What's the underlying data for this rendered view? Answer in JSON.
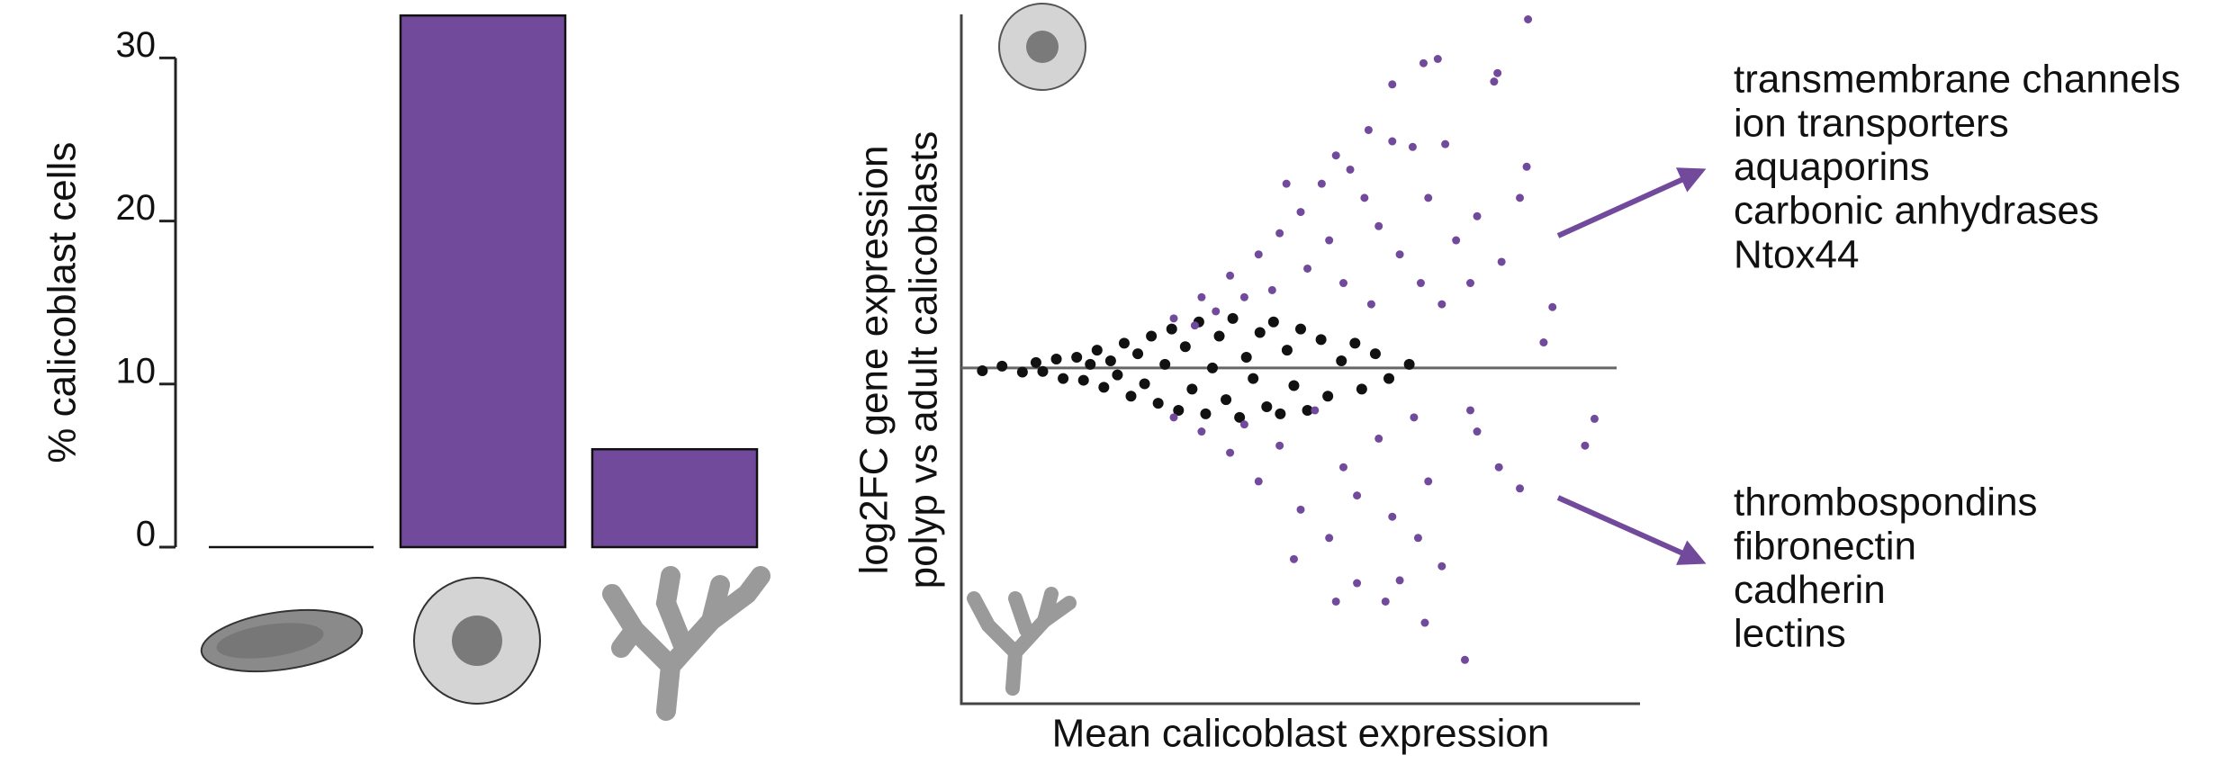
{
  "chart_data": [
    {
      "type": "bar",
      "ylabel": "% calicoblast cells",
      "categories": [
        null,
        null,
        null
      ],
      "values": [
        0,
        32.6,
        6.0
      ],
      "color": "#724a9c",
      "ylim": [
        0,
        33
      ],
      "yticks": [
        0,
        10,
        20,
        30
      ]
    },
    {
      "type": "scatter",
      "xlabel": "Mean calicoblast expression",
      "ylabel": [
        "log2FC gene expression",
        "polyp vs adult calicoblasts"
      ],
      "xlim": [
        0,
        10
      ],
      "ylim": [
        -9.5,
        10
      ],
      "hline": 0,
      "series": [
        {
          "color": "#111111",
          "x": [
            0.31,
            0.6,
            0.9,
            1.1,
            1.2,
            1.4,
            1.5,
            1.7,
            1.8,
            1.9,
            2.0,
            2.1,
            2.2,
            2.3,
            2.4,
            2.5,
            2.6,
            2.7,
            2.8,
            2.9,
            3.0,
            3.1,
            3.2,
            3.3,
            3.4,
            3.5,
            3.6,
            3.7,
            3.8,
            3.9,
            4.0,
            4.1,
            4.2,
            4.3,
            4.4,
            4.5,
            4.6,
            4.7,
            4.8,
            4.9,
            5.0,
            5.1,
            5.3,
            5.4,
            5.6,
            5.8,
            5.9,
            6.1,
            6.3,
            6.6
          ],
          "values": [
            -0.08,
            0.05,
            -0.12,
            0.15,
            -0.1,
            0.25,
            -0.3,
            0.3,
            -0.35,
            0.1,
            0.5,
            -0.55,
            0.2,
            -0.2,
            0.7,
            -0.8,
            0.4,
            -0.45,
            0.9,
            -1.0,
            0.1,
            1.1,
            -1.2,
            0.6,
            -0.6,
            1.3,
            -1.3,
            0.0,
            0.9,
            -0.9,
            1.4,
            -1.4,
            0.3,
            -0.3,
            1.0,
            -1.1,
            1.3,
            -1.3,
            0.5,
            -0.5,
            1.1,
            -1.2,
            0.8,
            -0.8,
            0.2,
            0.7,
            -0.6,
            0.4,
            -0.3,
            0.1
          ]
        },
        {
          "color": "#724a9c",
          "x": [
            8.35,
            7.02,
            6.81,
            7.9,
            7.85,
            6.35,
            8.33,
            8.23,
            6.65,
            7.13,
            6.0,
            7.6,
            7.96,
            8.71,
            8.58,
            9.33,
            9.19,
            8.23,
            7.42,
            6.83,
            6.25,
            6.46,
            5.83,
            7.08,
            6.73,
            5.42,
            5.0,
            4.38,
            3.96,
            3.54,
            3.13,
            4.17,
            4.69,
            5.63,
            6.15,
            6.67,
            7.5,
            5.21,
            5.83,
            6.35,
            4.9,
            5.52,
            7.6,
            7.92,
            6.88,
            3.13,
            3.54,
            3.96,
            4.38,
            4.17,
            4.69,
            5.0,
            5.31,
            5.52,
            5.73,
            5.94,
            6.15,
            6.46,
            6.77,
            7.08,
            4.58,
            5.1,
            5.63,
            6.04,
            5.42,
            7.29,
            7.5,
            6.35,
            6.88,
            4.79,
            3.44,
            3.75
          ],
          "values": [
            9.86,
            8.74,
            8.62,
            8.34,
            8.1,
            8.02,
            5.69,
            4.81,
            6.25,
            6.33,
            6.73,
            4.29,
            3.0,
            1.72,
            0.72,
            -1.44,
            -2.2,
            -3.41,
            -8.26,
            -7.21,
            -6.61,
            -6.01,
            -6.09,
            -5.61,
            -4.81,
            -4.81,
            -4.01,
            -3.21,
            -2.4,
            -1.8,
            -1.4,
            -1.6,
            -2.2,
            -2.81,
            -2.0,
            -1.4,
            -1.2,
            -1.2,
            -3.61,
            -4.21,
            -5.41,
            -6.61,
            -1.8,
            -2.81,
            -3.21,
            1.4,
            2.0,
            2.61,
            3.21,
            2.0,
            3.81,
            4.41,
            5.21,
            6.01,
            5.61,
            4.81,
            4.01,
            3.21,
            2.4,
            1.8,
            2.2,
            2.81,
            2.4,
            1.8,
            3.61,
            3.61,
            2.4,
            6.41,
            4.81,
            5.21,
            1.2,
            1.6
          ]
        }
      ],
      "annotations": [
        {
          "color": "#724a9c",
          "lines": [
            "transmembrane channels",
            "ion transporters",
            "aquaporins",
            "carbonic anhydrases",
            "Ntox44"
          ]
        },
        {
          "color": "#724a9c",
          "lines": [
            "thrombospondins",
            "fibronectin",
            "cadherin",
            "lectins"
          ]
        }
      ]
    }
  ]
}
